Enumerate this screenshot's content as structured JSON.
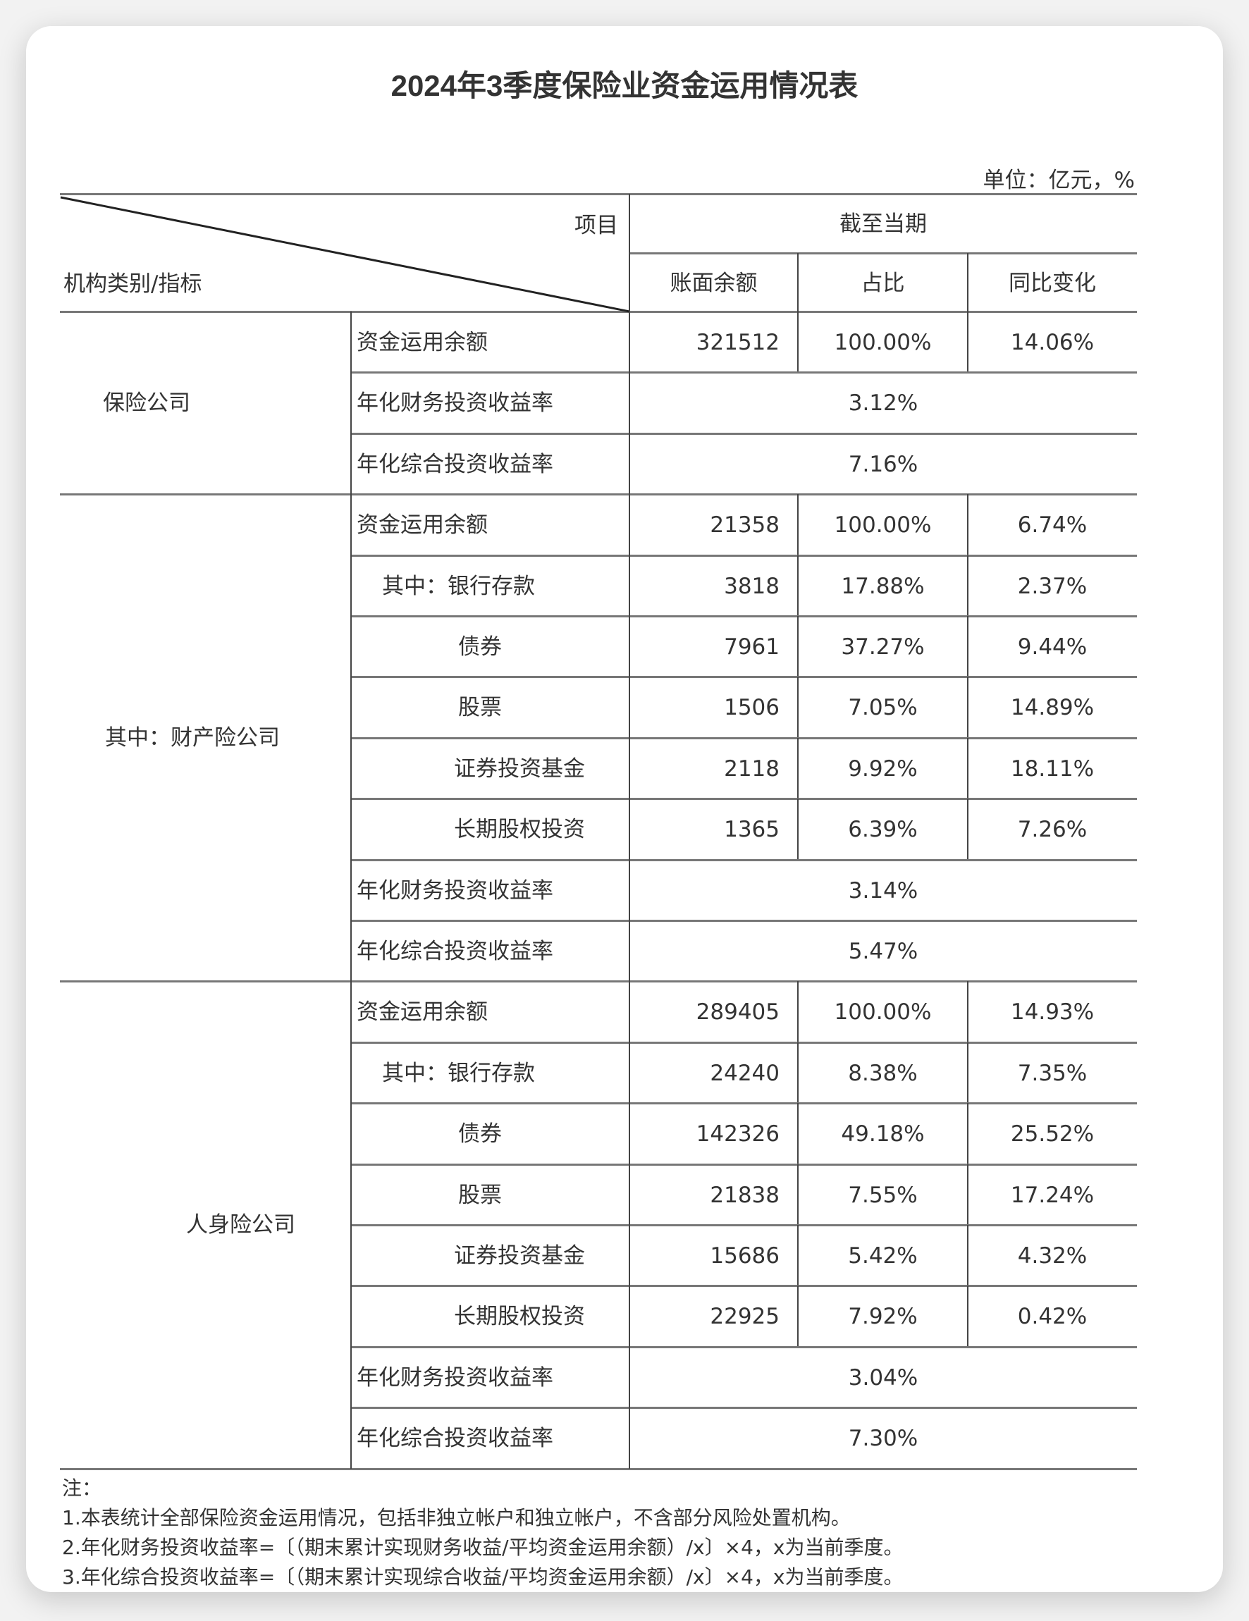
{
  "title": "2024年3季度保险业资金运用情况表",
  "unit": "单位：亿元，%",
  "header": {
    "item": "项目",
    "category": "机构类别/指标",
    "period": "截至当期",
    "columns": [
      "账面余额",
      "占比",
      "同比变化"
    ]
  },
  "groups": [
    {
      "name": "保险公司",
      "rows": [
        {
          "label": "资金运用余额",
          "level": 0,
          "value": "321512",
          "share": "100.00%",
          "yoy": "14.06%"
        },
        {
          "label": "年化财务投资收益率",
          "level": 0,
          "merged": "3.12%"
        },
        {
          "label": "年化综合投资收益率",
          "level": 0,
          "merged": "7.16%"
        }
      ]
    },
    {
      "name": "其中：财产险公司",
      "rows": [
        {
          "label": "资金运用余额",
          "level": 0,
          "value": "21358",
          "share": "100.00%",
          "yoy": "6.74%"
        },
        {
          "label": "其中：银行存款",
          "level": 1,
          "value": "3818",
          "share": "17.88%",
          "yoy": "2.37%"
        },
        {
          "label": "债券",
          "level": 2,
          "value": "7961",
          "share": "37.27%",
          "yoy": "9.44%"
        },
        {
          "label": "股票",
          "level": 2,
          "value": "1506",
          "share": "7.05%",
          "yoy": "14.89%"
        },
        {
          "label": "证券投资基金",
          "level": 2,
          "value": "2118",
          "share": "9.92%",
          "yoy": "18.11%"
        },
        {
          "label": "长期股权投资",
          "level": 2,
          "value": "1365",
          "share": "6.39%",
          "yoy": "7.26%"
        },
        {
          "label": "年化财务投资收益率",
          "level": 0,
          "merged": "3.14%"
        },
        {
          "label": "年化综合投资收益率",
          "level": 0,
          "merged": "5.47%"
        }
      ]
    },
    {
      "name": "人身险公司",
      "rows": [
        {
          "label": "资金运用余额",
          "level": 0,
          "value": "289405",
          "share": "100.00%",
          "yoy": "14.93%"
        },
        {
          "label": "其中：银行存款",
          "level": 1,
          "value": "24240",
          "share": "8.38%",
          "yoy": "7.35%"
        },
        {
          "label": "债券",
          "level": 2,
          "value": "142326",
          "share": "49.18%",
          "yoy": "25.52%"
        },
        {
          "label": "股票",
          "level": 2,
          "value": "21838",
          "share": "7.55%",
          "yoy": "17.24%"
        },
        {
          "label": "证券投资基金",
          "level": 2,
          "value": "15686",
          "share": "5.42%",
          "yoy": "4.32%"
        },
        {
          "label": "长期股权投资",
          "level": 2,
          "value": "22925",
          "share": "7.92%",
          "yoy": "0.42%"
        },
        {
          "label": "年化财务投资收益率",
          "level": 0,
          "merged": "3.04%"
        },
        {
          "label": "年化综合投资收益率",
          "level": 0,
          "merged": "7.30%"
        }
      ]
    }
  ],
  "notes": [
    "注：",
    "1.本表统计全部保险资金运用情况，包括非独立帐户和独立帐户，不含部分风险处置机构。",
    "2.年化财务投资收益率=〔（期末累计实现财务收益/平均资金运用余额）/x〕×4，x为当前季度。",
    "3.年化综合投资收益率=〔（期末累计实现综合收益/平均资金运用余额）/x〕×4，x为当前季度。"
  ]
}
